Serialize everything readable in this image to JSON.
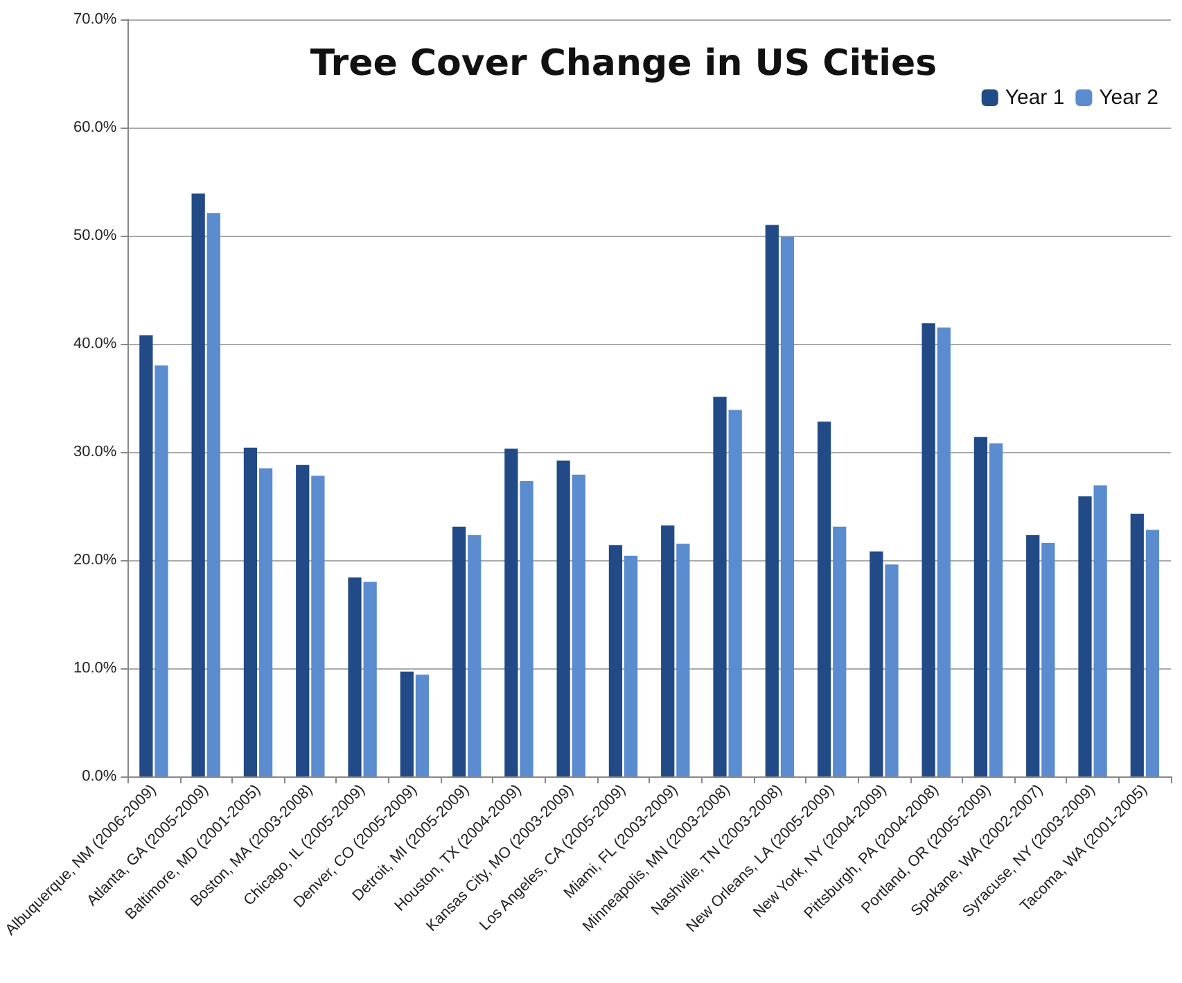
{
  "chart_data": {
    "type": "bar",
    "title": "Tree Cover Change in US Cities",
    "categories": [
      "Albuquerque, NM (2006-2009)",
      "Atlanta, GA (2005-2009)",
      "Baltimore, MD (2001-2005)",
      "Boston, MA (2003-2008)",
      "Chicago, IL (2005-2009)",
      "Denver, CO (2005-2009)",
      "Detroit, MI (2005-2009)",
      "Houston, TX (2004-2009)",
      "Kansas City, MO (2003-2009)",
      "Los Angeles, CA (2005-2009)",
      "Miami, FL (2003-2009)",
      "Minneapolis, MN (2003-2008)",
      "Nashville, TN (2003-2008)",
      "New Orleans, LA (2005-2009)",
      "New York, NY (2004-2009)",
      "Pittsburgh, PA (2004-2008)",
      "Portland, OR (2005-2009)",
      "Spokane, WA (2002-2007)",
      "Syracuse, NY (2003-2009)",
      "Tacoma, WA (2001-2005)"
    ],
    "series": [
      {
        "name": "Year 1",
        "color": "#214a86",
        "values": [
          40.8,
          53.9,
          30.4,
          28.8,
          18.4,
          9.7,
          23.1,
          30.3,
          29.2,
          21.4,
          23.2,
          35.1,
          51.0,
          32.8,
          20.8,
          41.9,
          31.4,
          22.3,
          25.9,
          24.3
        ]
      },
      {
        "name": "Year 2",
        "color": "#5a8ccf",
        "values": [
          38.0,
          52.1,
          28.5,
          27.8,
          18.0,
          9.4,
          22.3,
          27.3,
          27.9,
          20.4,
          21.5,
          33.9,
          49.9,
          23.1,
          19.6,
          41.5,
          30.8,
          21.6,
          26.9,
          22.8
        ]
      }
    ],
    "ylim": [
      0,
      70
    ],
    "yticks": [
      {
        "value": 0,
        "label": "0.0%"
      },
      {
        "value": 10,
        "label": "10.0%"
      },
      {
        "value": 20,
        "label": "20.0%"
      },
      {
        "value": 30,
        "label": "30.0%"
      },
      {
        "value": 40,
        "label": "40.0%"
      },
      {
        "value": 50,
        "label": "50.0%"
      },
      {
        "value": 60,
        "label": "60.0%"
      },
      {
        "value": 70,
        "label": "70.0%"
      }
    ],
    "grid": "y",
    "legend": "top right"
  }
}
